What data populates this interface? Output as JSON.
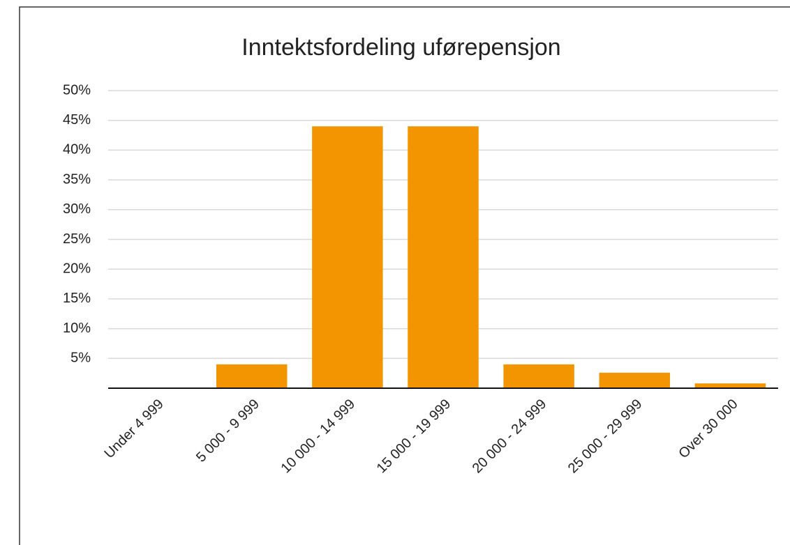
{
  "chart_data": {
    "type": "bar",
    "title": "Inntektsfordeling uførepensjon",
    "categories": [
      "Under 4 999",
      "5 000 - 9 999",
      "10 000 - 14 999",
      "15 000 - 19 999",
      "20 000 - 24 999",
      "25 000 - 29 999",
      "Over 30 000"
    ],
    "values": [
      0,
      4,
      44,
      44,
      4,
      2.6,
      0.8
    ],
    "color": "#f29500",
    "ylim": [
      0,
      50
    ],
    "yticks": [
      {
        "value": 5,
        "label": "5%"
      },
      {
        "value": 10,
        "label": "10%"
      },
      {
        "value": 15,
        "label": "15%"
      },
      {
        "value": 20,
        "label": "20%"
      },
      {
        "value": 25,
        "label": "25%"
      },
      {
        "value": 30,
        "label": "30%"
      },
      {
        "value": 35,
        "label": "35%"
      },
      {
        "value": 40,
        "label": "40%"
      },
      {
        "value": 45,
        "label": "45%"
      },
      {
        "value": 50,
        "label": "50%"
      }
    ],
    "grid": true
  }
}
